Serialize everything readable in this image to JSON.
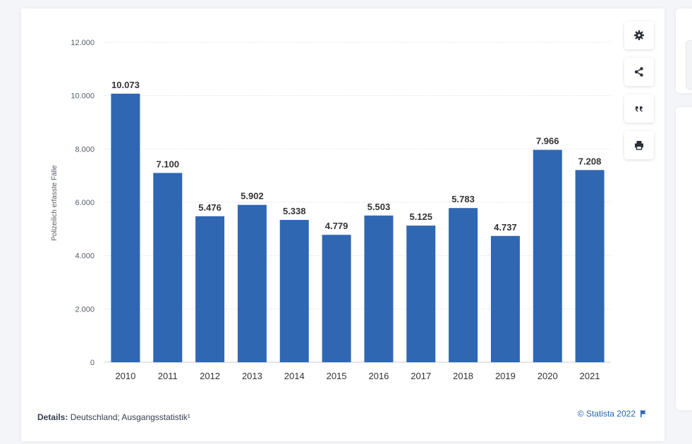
{
  "toolbar": {
    "buttons": [
      {
        "name": "settings-button",
        "icon": "gear-icon"
      },
      {
        "name": "share-button",
        "icon": "share-icon"
      },
      {
        "name": "cite-button",
        "icon": "quote-icon"
      },
      {
        "name": "print-button",
        "icon": "print-icon"
      }
    ]
  },
  "footer": {
    "details_label": "Details:",
    "details_text": "Deutschland; Ausgangsstatistik¹",
    "credit": "© Statista 2022",
    "credit_icon": "flag-icon"
  },
  "colors": {
    "bar": "#3067b3",
    "grid": "#e2e5ea",
    "accent": "#2563b8"
  },
  "chart_data": {
    "type": "bar",
    "ylabel": "Polizeilich erfasste Fälle",
    "xlabel": "",
    "ylim": [
      0,
      12000
    ],
    "yticks": [
      0,
      2000,
      4000,
      6000,
      8000,
      10000,
      12000
    ],
    "ytick_labels": [
      "0",
      "2.000",
      "4.000",
      "6.000",
      "8.000",
      "10.000",
      "12.000"
    ],
    "grid": true,
    "categories": [
      "2010",
      "2011",
      "2012",
      "2013",
      "2014",
      "2015",
      "2016",
      "2017",
      "2018",
      "2019",
      "2020",
      "2021"
    ],
    "values": [
      10073,
      7100,
      5476,
      5902,
      5338,
      4779,
      5503,
      5125,
      5783,
      4737,
      7966,
      7208
    ],
    "value_labels": [
      "10.073",
      "7.100",
      "5.476",
      "5.902",
      "5.338",
      "4.779",
      "5.503",
      "5.125",
      "5.783",
      "4.737",
      "7.966",
      "7.208"
    ]
  }
}
